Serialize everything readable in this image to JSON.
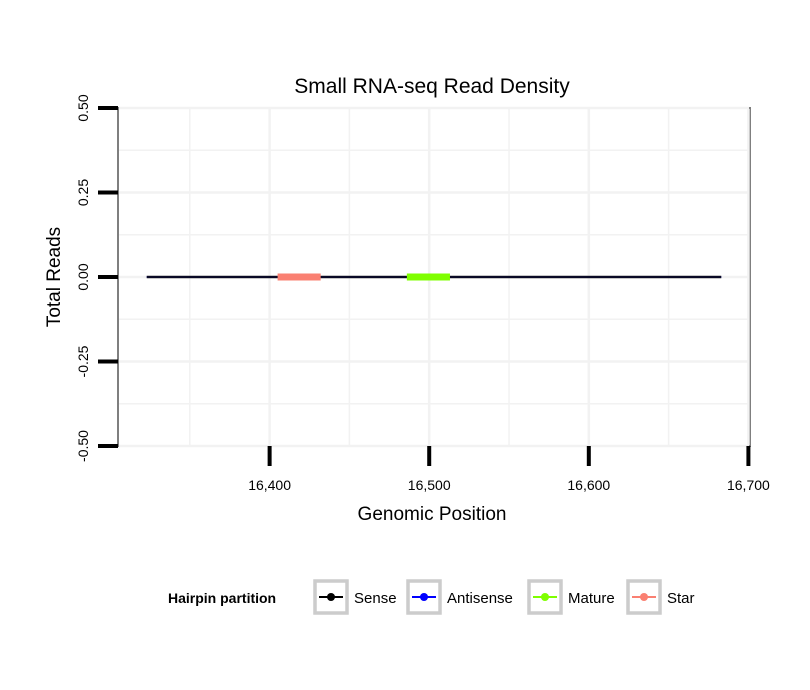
{
  "chart_data": {
    "type": "line",
    "title": "Small RNA-seq Read Density",
    "xlabel": "Genomic Position",
    "ylabel": "Total Reads",
    "xlim": [
      16305,
      16701
    ],
    "ylim": [
      -0.5,
      0.5
    ],
    "x_ticks": [
      16400,
      16500,
      16600,
      16700
    ],
    "x_tick_labels": [
      "16,400",
      "16,500",
      "16,600",
      "16,700"
    ],
    "y_ticks": [
      -0.5,
      -0.25,
      0.0,
      0.25,
      0.5
    ],
    "y_tick_labels": [
      "-0.50",
      "-0.25",
      "0.00",
      "0.25",
      "0.50"
    ],
    "grid": true,
    "legend": {
      "title": "Hairpin partition",
      "position": "bottom",
      "entries": [
        {
          "label": "Sense",
          "color": "#000000"
        },
        {
          "label": "Antisense",
          "color": "#0000ff"
        },
        {
          "label": "Mature",
          "color": "#7fff00"
        },
        {
          "label": "Star",
          "color": "#fa8072"
        }
      ]
    },
    "series": [
      {
        "name": "Sense",
        "color": "#000000",
        "x": [
          16323,
          16683
        ],
        "y": [
          0,
          0
        ]
      },
      {
        "name": "Antisense",
        "color": "#0000ff",
        "x": [
          16323,
          16683
        ],
        "y": [
          0,
          0
        ]
      },
      {
        "name": "Mature",
        "color": "#7fff00",
        "x": [
          16486,
          16513
        ],
        "y": [
          0,
          0
        ]
      },
      {
        "name": "Star",
        "color": "#fa8072",
        "x": [
          16405,
          16432
        ],
        "y": [
          0,
          0
        ]
      }
    ]
  }
}
